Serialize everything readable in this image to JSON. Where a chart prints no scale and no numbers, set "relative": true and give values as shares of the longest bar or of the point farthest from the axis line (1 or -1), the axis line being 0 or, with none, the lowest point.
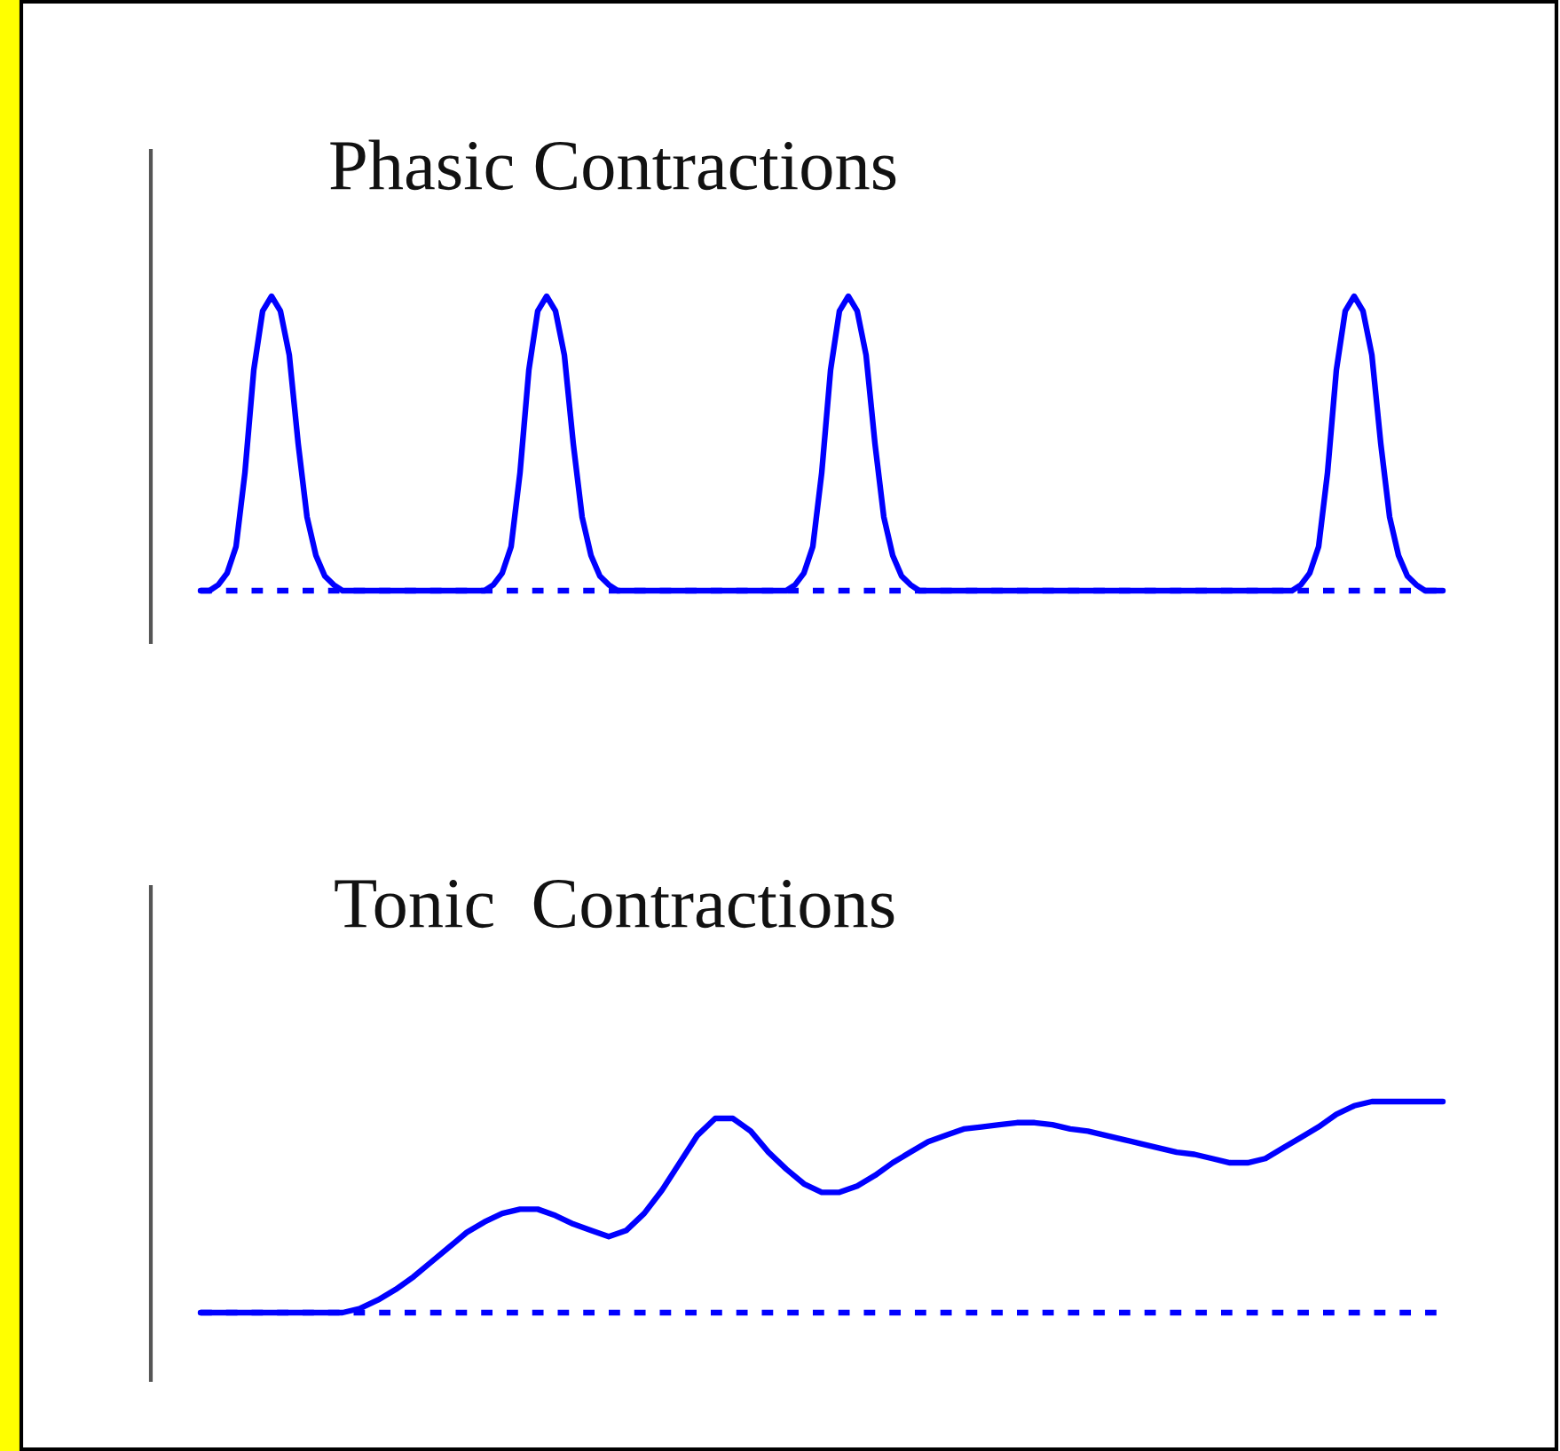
{
  "chart_data": [
    {
      "type": "line",
      "title": "Phasic Contractions",
      "relative": true,
      "categories": [
        null,
        null,
        null,
        null,
        null,
        null,
        null,
        null,
        null,
        null,
        null,
        null,
        null,
        null,
        null,
        null,
        null,
        null,
        null,
        null,
        null,
        null,
        null,
        null,
        null,
        null,
        null,
        null,
        null,
        null,
        null,
        null,
        null,
        null,
        null,
        null,
        null,
        null,
        null,
        null,
        null,
        null,
        null,
        null,
        null,
        null,
        null,
        null,
        null,
        null,
        null,
        null,
        null,
        null,
        null,
        null,
        null,
        null,
        null,
        null,
        null,
        null,
        null,
        null,
        null,
        null,
        null,
        null,
        null,
        null,
        null,
        null,
        null,
        null,
        null,
        null,
        null,
        null,
        null,
        null,
        null,
        null,
        null,
        null,
        null,
        null,
        null,
        null,
        null,
        null,
        null,
        null,
        null,
        null,
        null,
        null,
        null,
        null,
        null,
        null,
        null,
        null,
        null,
        null,
        null,
        null,
        null,
        null,
        null,
        null,
        null,
        null,
        null,
        null,
        null,
        null,
        null,
        null,
        null,
        null,
        null,
        null,
        null,
        null,
        null,
        null,
        null,
        null,
        null,
        null,
        null,
        null,
        null,
        null,
        null,
        null,
        null,
        null,
        null,
        null,
        null
      ],
      "series": [
        {
          "color": "#0000ff",
          "values": [
            0,
            0,
            0.02,
            0.06,
            0.15,
            0.4,
            0.75,
            0.95,
            1,
            0.95,
            0.8,
            0.5,
            0.25,
            0.12,
            0.05,
            0.02,
            0,
            0,
            0,
            0,
            0,
            0,
            0,
            0,
            0,
            0,
            0,
            0,
            0,
            0,
            0,
            0,
            0,
            0.02,
            0.06,
            0.15,
            0.4,
            0.75,
            0.95,
            1,
            0.95,
            0.8,
            0.5,
            0.25,
            0.12,
            0.05,
            0.02,
            0,
            0,
            0,
            0,
            0,
            0,
            0,
            0,
            0,
            0,
            0,
            0,
            0,
            0,
            0,
            0,
            0,
            0,
            0,
            0,
            0.02,
            0.06,
            0.15,
            0.4,
            0.75,
            0.95,
            1,
            0.95,
            0.8,
            0.5,
            0.25,
            0.12,
            0.05,
            0.02,
            0,
            0,
            0,
            0,
            0,
            0,
            0,
            0,
            0,
            0,
            0,
            0,
            0,
            0,
            0,
            0,
            0,
            0,
            0,
            0,
            0,
            0,
            0,
            0,
            0,
            0,
            0,
            0,
            0,
            0,
            0,
            0,
            0,
            0,
            0,
            0,
            0,
            0,
            0,
            0,
            0,
            0,
            0,
            0.02,
            0.06,
            0.15,
            0.4,
            0.75,
            0.95,
            1,
            0.95,
            0.8,
            0.5,
            0.25,
            0.12,
            0.05,
            0.02,
            0,
            0,
            0
          ]
        }
      ],
      "ref_lines": [
        {
          "axis": "y",
          "value": 0,
          "color": "#0000ff",
          "line_style": "dotted"
        }
      ]
    },
    {
      "type": "line",
      "title": "Tonic  Contractions",
      "relative": true,
      "categories": [
        null,
        null,
        null,
        null,
        null,
        null,
        null,
        null,
        null,
        null,
        null,
        null,
        null,
        null,
        null,
        null,
        null,
        null,
        null,
        null,
        null,
        null,
        null,
        null,
        null,
        null,
        null,
        null,
        null,
        null,
        null,
        null,
        null,
        null,
        null,
        null,
        null,
        null,
        null,
        null,
        null,
        null,
        null,
        null,
        null,
        null,
        null,
        null,
        null,
        null,
        null,
        null,
        null,
        null,
        null,
        null,
        null,
        null,
        null,
        null,
        null,
        null,
        null,
        null,
        null,
        null,
        null,
        null,
        null,
        null,
        null
      ],
      "series": [
        {
          "color": "#0000ff",
          "values": [
            0,
            0,
            0,
            0,
            0,
            0,
            0,
            0,
            0,
            0.02,
            0.06,
            0.11,
            0.17,
            0.24,
            0.31,
            0.38,
            0.43,
            0.47,
            0.49,
            0.49,
            0.46,
            0.42,
            0.39,
            0.36,
            0.39,
            0.47,
            0.58,
            0.71,
            0.84,
            0.92,
            0.92,
            0.86,
            0.76,
            0.68,
            0.61,
            0.57,
            0.57,
            0.6,
            0.65,
            0.71,
            0.76,
            0.81,
            0.84,
            0.87,
            0.88,
            0.89,
            0.9,
            0.9,
            0.89,
            0.87,
            0.86,
            0.84,
            0.82,
            0.8,
            0.78,
            0.76,
            0.75,
            0.73,
            0.71,
            0.71,
            0.73,
            0.78,
            0.83,
            0.88,
            0.94,
            0.98,
            1,
            1,
            1,
            1,
            1
          ]
        }
      ],
      "ref_lines": [
        {
          "axis": "y",
          "value": 0,
          "color": "#0000ff",
          "line_style": "dotted"
        }
      ]
    }
  ]
}
